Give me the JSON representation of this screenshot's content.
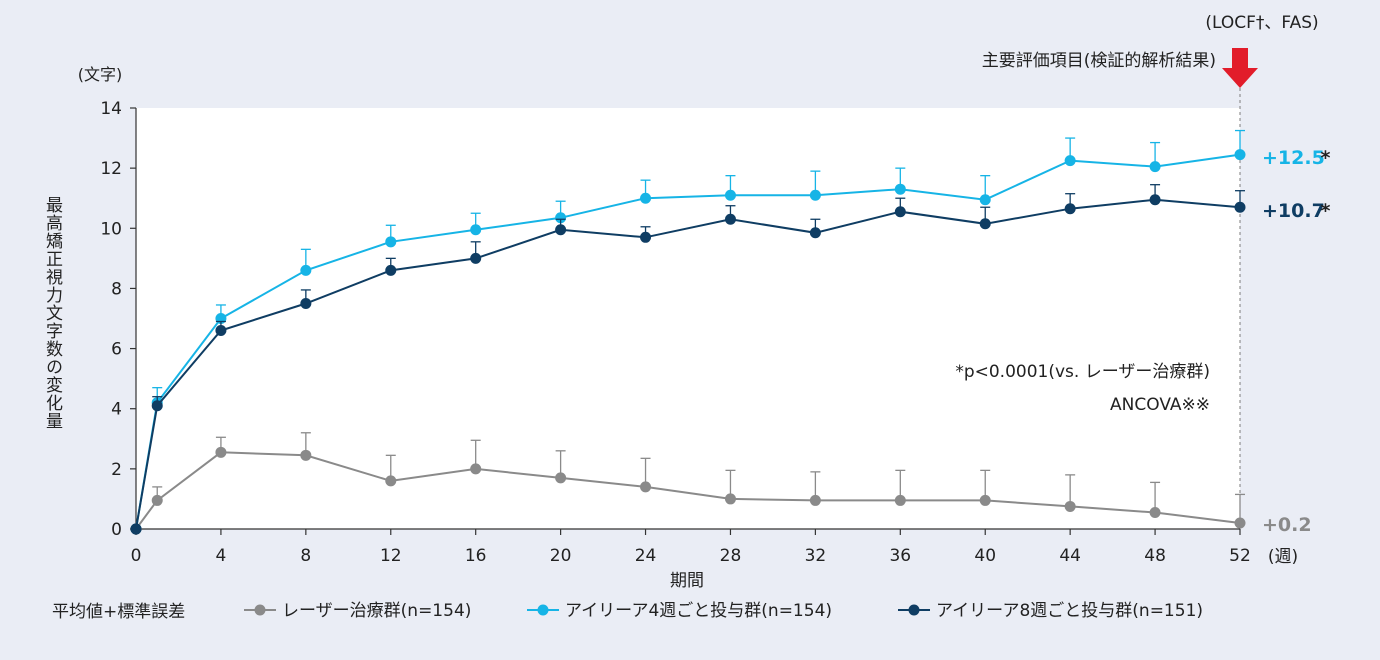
{
  "chart_data": {
    "type": "line",
    "method_label": "(LOCF†、FAS)",
    "ylabel": "最高矯正視力文字数の変化量",
    "y_unit": "(文字)",
    "xlabel": "期間",
    "x_unit": "(週)",
    "ylim": [
      0,
      14
    ],
    "yticks": [
      0,
      2,
      4,
      6,
      8,
      10,
      12,
      14
    ],
    "xlim": [
      0,
      52
    ],
    "xticks": [
      0,
      4,
      8,
      12,
      16,
      20,
      24,
      28,
      32,
      36,
      40,
      44,
      48,
      52
    ],
    "grid": false,
    "primary_endpoint": {
      "label": "主要評価項目(検証的解析結果)",
      "week": 52
    },
    "significance_note": "*p<0.0001(vs. レーザー治療群)",
    "analysis_note": "ANCOVA※※",
    "stat_label": "平均値+標準誤差",
    "legend_position": "bottom",
    "x": [
      0,
      1,
      4,
      8,
      12,
      16,
      20,
      24,
      28,
      32,
      36,
      40,
      44,
      48,
      52
    ],
    "series": [
      {
        "name": "レーザー治療群(n=154)",
        "color": "#8a8a8a",
        "values": [
          0,
          0.95,
          2.55,
          2.45,
          1.6,
          2.0,
          1.7,
          1.4,
          1.0,
          0.95,
          0.95,
          0.95,
          0.75,
          0.55,
          0.2
        ],
        "se": [
          0,
          0.45,
          0.5,
          0.75,
          0.85,
          0.95,
          0.9,
          0.95,
          0.95,
          0.95,
          1.0,
          1.0,
          1.05,
          1.0,
          0.95
        ],
        "end_label": "+0.2",
        "end_mark": ""
      },
      {
        "name": "アイリーア4週ごと投与群(n=154)",
        "color": "#16b4e6",
        "values": [
          0,
          4.2,
          7.0,
          8.6,
          9.55,
          9.95,
          10.35,
          11.0,
          11.1,
          11.1,
          11.3,
          10.95,
          12.25,
          12.05,
          12.45
        ],
        "se": [
          0,
          0.5,
          0.45,
          0.7,
          0.55,
          0.55,
          0.55,
          0.6,
          0.65,
          0.8,
          0.7,
          0.8,
          0.75,
          0.8,
          0.8
        ],
        "end_label": "+12.5",
        "end_mark": "*"
      },
      {
        "name": "アイリーア8週ごと投与群(n=151)",
        "color": "#0f3d63",
        "values": [
          0,
          4.1,
          6.6,
          7.5,
          8.6,
          9.0,
          9.95,
          9.7,
          10.3,
          9.85,
          10.55,
          10.15,
          10.65,
          10.95,
          10.7
        ],
        "se": [
          0,
          0.3,
          0.3,
          0.45,
          0.4,
          0.55,
          0.35,
          0.35,
          0.45,
          0.45,
          0.45,
          0.55,
          0.5,
          0.5,
          0.55
        ],
        "end_label": "+10.7",
        "end_mark": "*"
      }
    ]
  }
}
